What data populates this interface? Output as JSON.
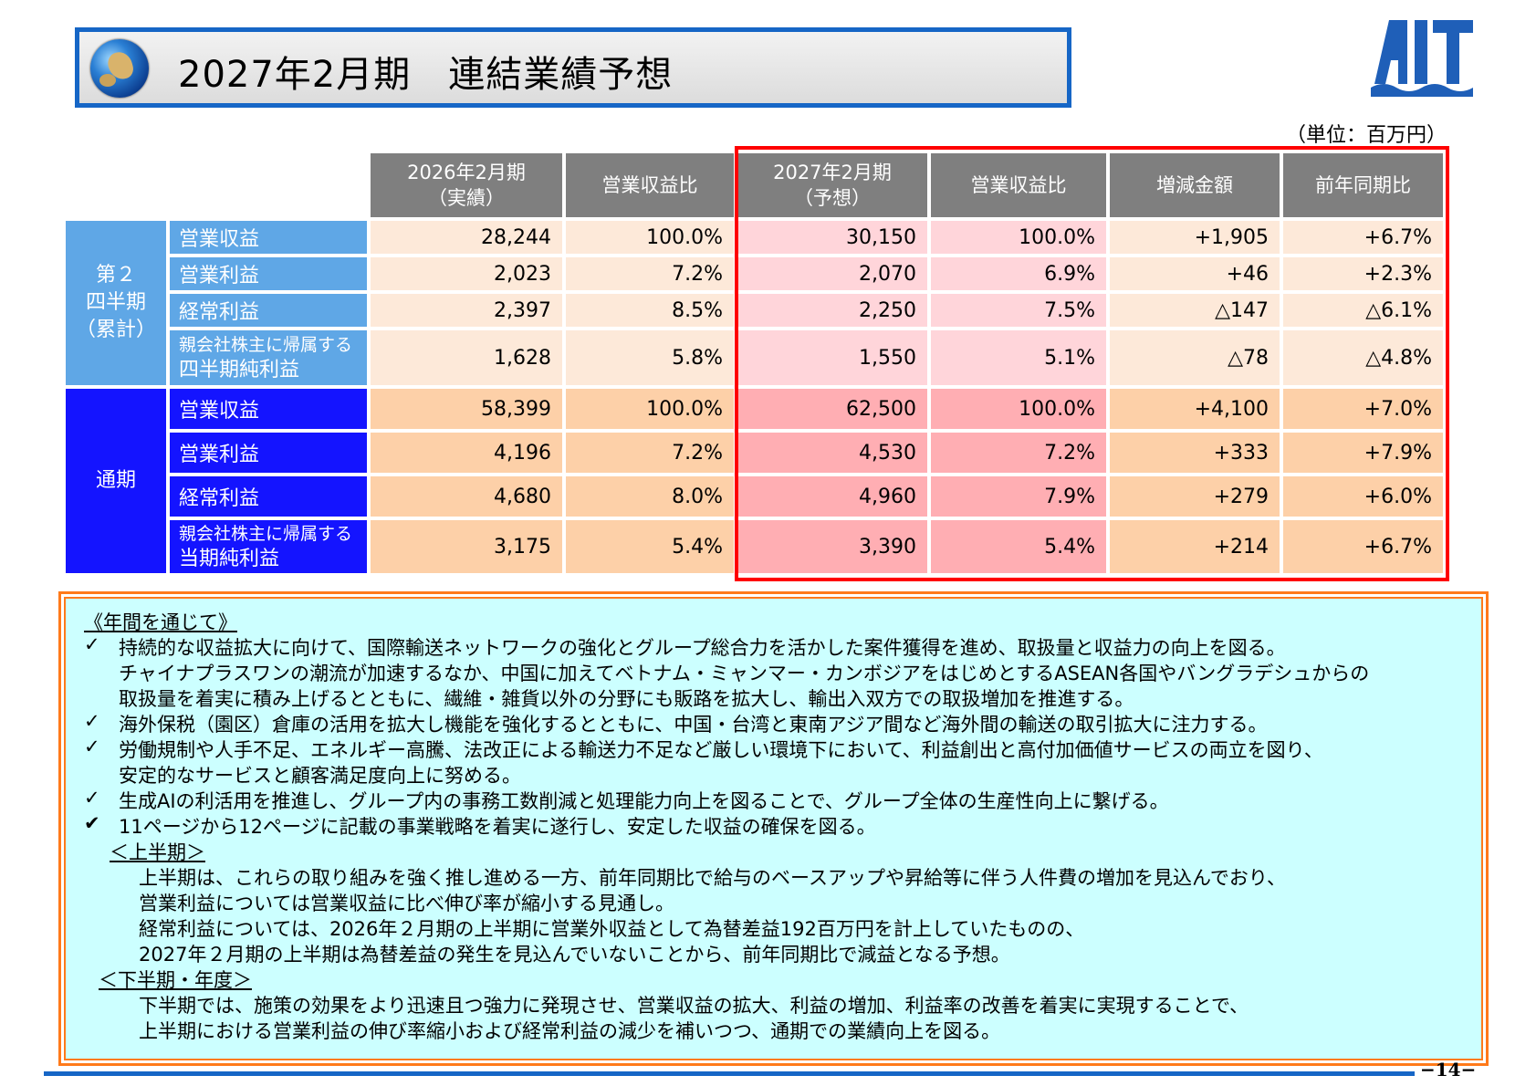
{
  "title": "2027年2月期　連結業績予想",
  "logo_text": "AIT",
  "unit": "（単位：百万円）",
  "headers": {
    "prev": "2026年2月期\n（実績）",
    "prev_ratio": "営業収益比",
    "fcst": "2027年2月期\n（予想）",
    "fcst_ratio": "営業収益比",
    "diff": "増減金額",
    "yoy": "前年同期比"
  },
  "sections": {
    "q2_label": "第２\n四半期\n（累計）",
    "full_label": "通期"
  },
  "rows": [
    {
      "label": "営業収益",
      "prev": "28,244",
      "prev_ratio": "100.0%",
      "fcst": "30,150",
      "fcst_ratio": "100.0%",
      "diff": "+1,905",
      "yoy": "+6.7%"
    },
    {
      "label": "営業利益",
      "prev": "2,023",
      "prev_ratio": "7.2%",
      "fcst": "2,070",
      "fcst_ratio": "6.9%",
      "diff": "+46",
      "yoy": "+2.3%"
    },
    {
      "label": "経常利益",
      "prev": "2,397",
      "prev_ratio": "8.5%",
      "fcst": "2,250",
      "fcst_ratio": "7.5%",
      "diff": "△147",
      "yoy": "△6.1%"
    },
    {
      "label_small": "親会社株主に帰属する",
      "label": "四半期純利益",
      "prev": "1,628",
      "prev_ratio": "5.8%",
      "fcst": "1,550",
      "fcst_ratio": "5.1%",
      "diff": "△78",
      "yoy": "△4.8%"
    },
    {
      "label": "営業収益",
      "prev": "58,399",
      "prev_ratio": "100.0%",
      "fcst": "62,500",
      "fcst_ratio": "100.0%",
      "diff": "+4,100",
      "yoy": "+7.0%"
    },
    {
      "label": "営業利益",
      "prev": "4,196",
      "prev_ratio": "7.2%",
      "fcst": "4,530",
      "fcst_ratio": "7.2%",
      "diff": "+333",
      "yoy": "+7.9%"
    },
    {
      "label": "経常利益",
      "prev": "4,680",
      "prev_ratio": "8.0%",
      "fcst": "4,960",
      "fcst_ratio": "7.9%",
      "diff": "+279",
      "yoy": "+6.0%"
    },
    {
      "label_small": "親会社株主に帰属する",
      "label": "当期純利益",
      "prev": "3,175",
      "prev_ratio": "5.4%",
      "fcst": "3,390",
      "fcst_ratio": "5.4%",
      "diff": "+214",
      "yoy": "+6.7%"
    }
  ],
  "notes": {
    "heading": "《年間を通じて》",
    "check": "✓",
    "check_bold": "✔",
    "b1_l1": "持続的な収益拡大に向けて、国際輸送ネットワークの強化とグループ総合力を活かした案件獲得を進め、取扱量と収益力の向上を図る。",
    "b1_l2": "チャイナプラスワンの潮流が加速するなか、中国に加えてベトナム・ミャンマー・カンボジアをはじめとするASEAN各国やバングラデシュからの",
    "b1_l3": "取扱量を着実に積み上げるとともに、繊維・雑貨以外の分野にも販路を拡大し、輸出入双方での取扱増加を推進する。",
    "b2": "海外保税（園区）倉庫の活用を拡大し機能を強化するとともに、中国・台湾と東南アジア間など海外間の輸送の取引拡大に注力する。",
    "b3_l1": "労働規制や人手不足、エネルギー高騰、法改正による輸送力不足など厳しい環境下において、利益創出と高付加価値サービスの両立を図り、",
    "b3_l2": "安定的なサービスと顧客満足度向上に努める。",
    "b4": "生成AIの利活用を推進し、グループ内の事務工数削減と処理能力向上を図ることで、グループ全体の生産性向上に繋げる。",
    "b5": "11ページから12ページに記載の事業戦略を着実に遂行し、安定した収益の確保を図る。",
    "h1_heading": "＜上半期＞",
    "h1_l1": "上半期は、これらの取り組みを強く推し進める一方、前年同期比で給与のベースアップや昇給等に伴う人件費の増加を見込んでおり、",
    "h1_l2": "営業利益については営業収益に比べ伸び率が縮小する見通し。",
    "h1_l3": "経常利益については、2026年２月期の上半期に営業外収益として為替差益192百万円を計上していたものの、",
    "h1_l4": "2027年２月期の上半期は為替差益の発生を見込んでいないことから、前年同期比で減益となる予想。",
    "h2_heading": "＜下半期・年度＞",
    "h2_l1": "下半期では、施策の効果をより迅速且つ強力に発現させ、営業収益の拡大、利益の増加、利益率の改善を着実に実現することで、",
    "h2_l2": "上半期における営業利益の伸び率縮小および経常利益の減少を補いつつ、通期での業績向上を図る。"
  },
  "page_number": "−14−"
}
